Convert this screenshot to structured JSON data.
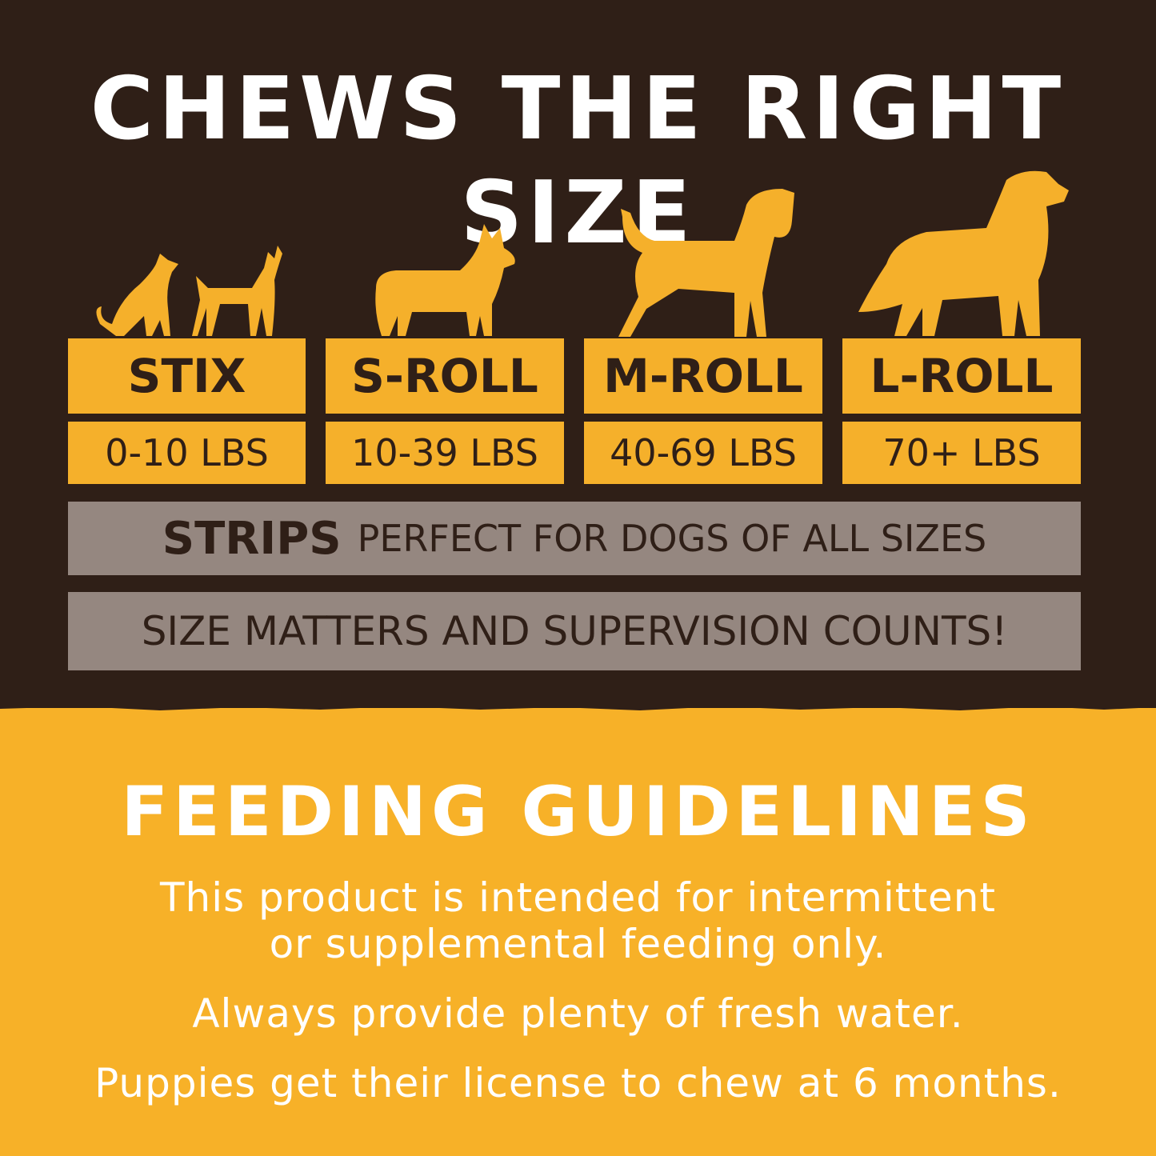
{
  "header": {
    "title": "CHEWS THE RIGHT SIZE"
  },
  "sizes": [
    {
      "name": "STIX",
      "weight": "0-10 LBS",
      "icon": "cat-and-small-dog-silhouette"
    },
    {
      "name": "S-ROLL",
      "weight": "10-39 LBS",
      "icon": "corgi-silhouette"
    },
    {
      "name": "M-ROLL",
      "weight": "40-69 LBS",
      "icon": "medium-dog-silhouette"
    },
    {
      "name": "L-ROLL",
      "weight": "70+ LBS",
      "icon": "large-dog-silhouette"
    }
  ],
  "strips": {
    "label": "STRIPS",
    "text": "PERFECT FOR DOGS OF ALL SIZES"
  },
  "notice": "SIZE MATTERS AND SUPERVISION COUNTS!",
  "feeding": {
    "title": "FEEDING GUIDELINES",
    "lines": [
      "This product is intended for intermittent",
      "or supplemental feeding only.",
      "Always provide plenty of fresh water.",
      "Puppies get their license to chew at 6 months."
    ]
  },
  "colors": {
    "dark": "#2f1f17",
    "yellow": "#f5b02b",
    "gray": "#958780",
    "white": "#ffffff"
  }
}
